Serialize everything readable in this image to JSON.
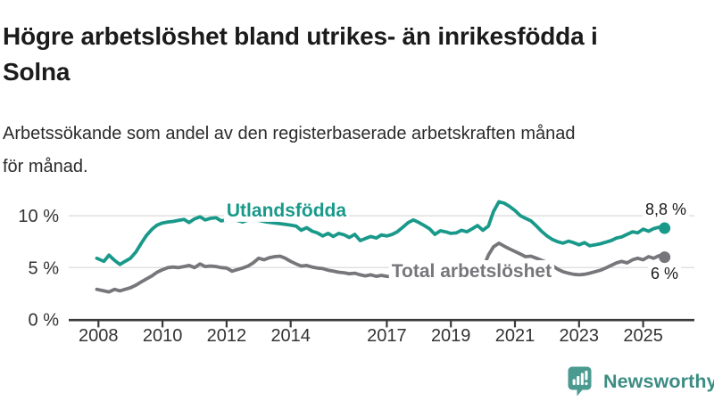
{
  "header": {
    "title_lines": [
      "Högre arbetslöshet bland utrikes- än inrikesfödda i",
      "Solna"
    ],
    "subtitle_lines": [
      "Arbetssökande som andel av den registerbaserade arbetskraften månad",
      "för månad."
    ]
  },
  "colors": {
    "accent_teal": "#19998a",
    "series_gray": "#76767b",
    "grid": "#e0e0e0",
    "axis": "#3b3b3b",
    "tick_text": "#333333",
    "annotation_text": "#1a1a1a",
    "brand": "#3c8c83"
  },
  "chart_data": {
    "type": "line",
    "unit": "%",
    "y_axis": {
      "range": [
        0,
        12
      ],
      "ticks": [
        {
          "label": "0 %",
          "value": 0
        },
        {
          "label": "5 %",
          "value": 5
        },
        {
          "label": "10 %",
          "value": 10
        }
      ]
    },
    "x_axis": {
      "range_years": [
        2007.9,
        2025.8
      ],
      "ticks": [
        {
          "label": "2008",
          "year": 2008
        },
        {
          "label": "2010",
          "year": 2010
        },
        {
          "label": "2012",
          "year": 2012
        },
        {
          "label": "2014",
          "year": 2014
        },
        {
          "label": "2017",
          "year": 2017
        },
        {
          "label": "2019",
          "year": 2019
        },
        {
          "label": "2021",
          "year": 2021
        },
        {
          "label": "2023",
          "year": 2023
        },
        {
          "label": "2025",
          "year": 2025
        }
      ]
    },
    "grid": true,
    "legend_position": "inline-labels",
    "series": [
      {
        "id": "utlandsfodda",
        "name": "Utlandsfödda",
        "color": "#19998a",
        "end_value_label": "8,8 %",
        "label": {
          "text": "Utlandsfödda",
          "x_year": 2012.0,
          "y_pct": 9.93,
          "anchor": "start"
        },
        "points": [
          [
            2007.95,
            5.9
          ],
          [
            2008.17,
            5.6
          ],
          [
            2008.33,
            6.2
          ],
          [
            2008.5,
            5.7
          ],
          [
            2008.67,
            5.3
          ],
          [
            2008.83,
            5.6
          ],
          [
            2009.0,
            5.9
          ],
          [
            2009.17,
            6.5
          ],
          [
            2009.33,
            7.3
          ],
          [
            2009.5,
            8.1
          ],
          [
            2009.67,
            8.7
          ],
          [
            2009.83,
            9.1
          ],
          [
            2010.0,
            9.3
          ],
          [
            2010.17,
            9.4
          ],
          [
            2010.33,
            9.45
          ],
          [
            2010.5,
            9.55
          ],
          [
            2010.67,
            9.65
          ],
          [
            2010.83,
            9.35
          ],
          [
            2011.0,
            9.7
          ],
          [
            2011.17,
            9.9
          ],
          [
            2011.33,
            9.6
          ],
          [
            2011.5,
            9.75
          ],
          [
            2011.67,
            9.8
          ],
          [
            2011.83,
            9.5
          ],
          [
            2012.0,
            9.6
          ],
          [
            2012.17,
            9.7
          ],
          [
            2012.33,
            9.55
          ],
          [
            2012.5,
            9.4
          ],
          [
            2012.67,
            9.6
          ],
          [
            2012.83,
            9.7
          ],
          [
            2013.0,
            9.55
          ],
          [
            2013.25,
            9.4
          ],
          [
            2013.5,
            9.3
          ],
          [
            2013.75,
            9.2
          ],
          [
            2014.0,
            9.1
          ],
          [
            2014.17,
            9.0
          ],
          [
            2014.33,
            8.6
          ],
          [
            2014.5,
            8.85
          ],
          [
            2014.67,
            8.5
          ],
          [
            2014.83,
            8.35
          ],
          [
            2015.0,
            8.05
          ],
          [
            2015.17,
            8.3
          ],
          [
            2015.33,
            8.0
          ],
          [
            2015.5,
            8.3
          ],
          [
            2015.67,
            8.15
          ],
          [
            2015.83,
            7.9
          ],
          [
            2016.0,
            8.2
          ],
          [
            2016.17,
            7.6
          ],
          [
            2016.33,
            7.8
          ],
          [
            2016.5,
            8.0
          ],
          [
            2016.67,
            7.85
          ],
          [
            2016.83,
            8.15
          ],
          [
            2017.0,
            8.05
          ],
          [
            2017.17,
            8.2
          ],
          [
            2017.33,
            8.45
          ],
          [
            2017.5,
            8.9
          ],
          [
            2017.67,
            9.35
          ],
          [
            2017.83,
            9.6
          ],
          [
            2018.0,
            9.35
          ],
          [
            2018.17,
            9.05
          ],
          [
            2018.33,
            8.75
          ],
          [
            2018.5,
            8.2
          ],
          [
            2018.67,
            8.55
          ],
          [
            2018.83,
            8.45
          ],
          [
            2019.0,
            8.3
          ],
          [
            2019.17,
            8.35
          ],
          [
            2019.33,
            8.6
          ],
          [
            2019.5,
            8.45
          ],
          [
            2019.67,
            8.75
          ],
          [
            2019.83,
            9.05
          ],
          [
            2020.0,
            8.6
          ],
          [
            2020.17,
            9.0
          ],
          [
            2020.33,
            10.4
          ],
          [
            2020.5,
            11.35
          ],
          [
            2020.67,
            11.2
          ],
          [
            2020.83,
            10.9
          ],
          [
            2021.0,
            10.5
          ],
          [
            2021.17,
            10.0
          ],
          [
            2021.33,
            9.75
          ],
          [
            2021.5,
            9.5
          ],
          [
            2021.67,
            9.0
          ],
          [
            2021.83,
            8.5
          ],
          [
            2022.0,
            8.05
          ],
          [
            2022.17,
            7.7
          ],
          [
            2022.33,
            7.5
          ],
          [
            2022.5,
            7.35
          ],
          [
            2022.67,
            7.55
          ],
          [
            2022.83,
            7.4
          ],
          [
            2023.0,
            7.2
          ],
          [
            2023.17,
            7.4
          ],
          [
            2023.33,
            7.1
          ],
          [
            2023.5,
            7.2
          ],
          [
            2023.67,
            7.3
          ],
          [
            2023.83,
            7.45
          ],
          [
            2024.0,
            7.6
          ],
          [
            2024.17,
            7.85
          ],
          [
            2024.33,
            7.95
          ],
          [
            2024.5,
            8.2
          ],
          [
            2024.67,
            8.45
          ],
          [
            2024.83,
            8.35
          ],
          [
            2025.0,
            8.7
          ],
          [
            2025.17,
            8.5
          ],
          [
            2025.33,
            8.75
          ],
          [
            2025.5,
            8.9
          ],
          [
            2025.67,
            8.8
          ]
        ]
      },
      {
        "id": "total",
        "name": "Total arbetslöshet",
        "color": "#76767b",
        "end_value_label": "6 %",
        "label": {
          "text": "Total arbetslöshet",
          "x_year": 2017.15,
          "y_pct": 4.08,
          "anchor": "start"
        },
        "points": [
          [
            2007.95,
            2.9
          ],
          [
            2008.17,
            2.75
          ],
          [
            2008.33,
            2.65
          ],
          [
            2008.5,
            2.9
          ],
          [
            2008.67,
            2.75
          ],
          [
            2008.83,
            2.9
          ],
          [
            2009.0,
            3.05
          ],
          [
            2009.17,
            3.3
          ],
          [
            2009.33,
            3.6
          ],
          [
            2009.5,
            3.9
          ],
          [
            2009.67,
            4.2
          ],
          [
            2009.83,
            4.55
          ],
          [
            2010.0,
            4.8
          ],
          [
            2010.17,
            5.0
          ],
          [
            2010.33,
            5.05
          ],
          [
            2010.5,
            5.0
          ],
          [
            2010.67,
            5.1
          ],
          [
            2010.83,
            5.2
          ],
          [
            2011.0,
            5.0
          ],
          [
            2011.17,
            5.35
          ],
          [
            2011.33,
            5.1
          ],
          [
            2011.5,
            5.15
          ],
          [
            2011.67,
            5.1
          ],
          [
            2011.83,
            5.0
          ],
          [
            2012.0,
            4.95
          ],
          [
            2012.17,
            4.65
          ],
          [
            2012.33,
            4.8
          ],
          [
            2012.5,
            4.95
          ],
          [
            2012.67,
            5.15
          ],
          [
            2012.83,
            5.45
          ],
          [
            2013.0,
            5.9
          ],
          [
            2013.17,
            5.75
          ],
          [
            2013.33,
            5.95
          ],
          [
            2013.5,
            6.05
          ],
          [
            2013.67,
            6.1
          ],
          [
            2013.83,
            5.9
          ],
          [
            2014.0,
            5.6
          ],
          [
            2014.17,
            5.35
          ],
          [
            2014.33,
            5.15
          ],
          [
            2014.5,
            5.2
          ],
          [
            2014.67,
            5.05
          ],
          [
            2014.83,
            4.95
          ],
          [
            2015.0,
            4.9
          ],
          [
            2015.17,
            4.75
          ],
          [
            2015.33,
            4.65
          ],
          [
            2015.5,
            4.55
          ],
          [
            2015.67,
            4.5
          ],
          [
            2015.83,
            4.4
          ],
          [
            2016.0,
            4.45
          ],
          [
            2016.17,
            4.3
          ],
          [
            2016.33,
            4.2
          ],
          [
            2016.5,
            4.3
          ],
          [
            2016.67,
            4.15
          ],
          [
            2016.83,
            4.25
          ],
          [
            2017.0,
            4.15
          ],
          [
            2017.25,
            4.1
          ],
          [
            2017.5,
            4.0
          ],
          [
            2017.75,
            4.05
          ],
          [
            2018.0,
            3.95
          ],
          [
            2018.25,
            4.0
          ],
          [
            2018.5,
            3.9
          ],
          [
            2018.75,
            4.0
          ],
          [
            2019.0,
            4.05
          ],
          [
            2019.25,
            4.15
          ],
          [
            2019.5,
            4.3
          ],
          [
            2019.75,
            4.5
          ],
          [
            2020.0,
            4.9
          ],
          [
            2020.17,
            6.2
          ],
          [
            2020.33,
            7.0
          ],
          [
            2020.5,
            7.35
          ],
          [
            2020.67,
            7.05
          ],
          [
            2020.83,
            6.8
          ],
          [
            2021.0,
            6.55
          ],
          [
            2021.17,
            6.3
          ],
          [
            2021.33,
            6.05
          ],
          [
            2021.5,
            6.1
          ],
          [
            2021.67,
            5.9
          ],
          [
            2021.83,
            5.7
          ],
          [
            2022.0,
            5.5
          ],
          [
            2022.17,
            5.2
          ],
          [
            2022.33,
            4.85
          ],
          [
            2022.5,
            4.6
          ],
          [
            2022.67,
            4.45
          ],
          [
            2022.83,
            4.35
          ],
          [
            2023.0,
            4.3
          ],
          [
            2023.17,
            4.35
          ],
          [
            2023.33,
            4.45
          ],
          [
            2023.5,
            4.6
          ],
          [
            2023.67,
            4.75
          ],
          [
            2023.83,
            4.95
          ],
          [
            2024.0,
            5.2
          ],
          [
            2024.17,
            5.45
          ],
          [
            2024.33,
            5.6
          ],
          [
            2024.5,
            5.45
          ],
          [
            2024.67,
            5.75
          ],
          [
            2024.83,
            5.9
          ],
          [
            2025.0,
            5.75
          ],
          [
            2025.17,
            6.05
          ],
          [
            2025.33,
            5.9
          ],
          [
            2025.5,
            6.15
          ],
          [
            2025.67,
            6.0
          ]
        ]
      }
    ],
    "annotations": [
      {
        "text": "8,8 %",
        "x_year": 2026.35,
        "y_pct": 10.08,
        "anchor": "end"
      },
      {
        "text": "6 %",
        "x_year": 2026.1,
        "y_pct": 3.9,
        "anchor": "end"
      }
    ]
  },
  "footer": {
    "brand": "Newsworthy",
    "logo_icon": "bar-chart-speech-bubble-icon"
  }
}
